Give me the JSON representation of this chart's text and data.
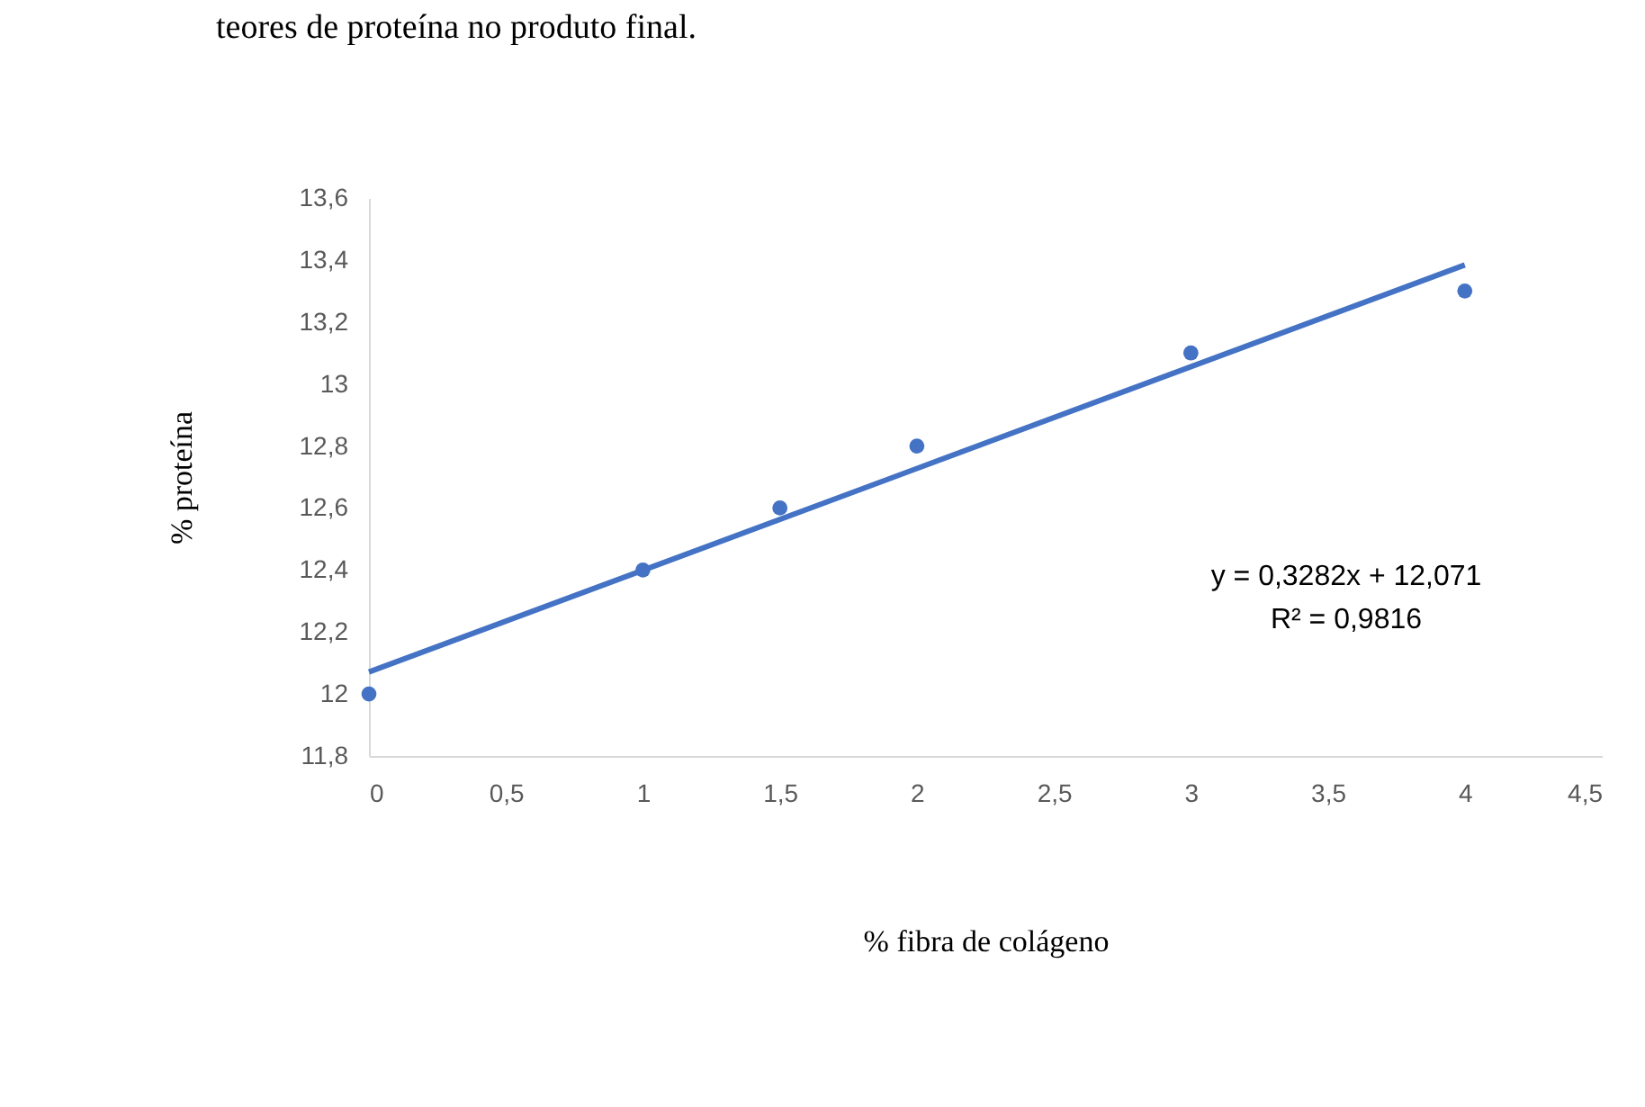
{
  "chart_data": {
    "type": "scatter",
    "title": "teores de proteína no produto final.",
    "xlabel": "% fibra de colágeno",
    "ylabel": "% proteína",
    "x": [
      0,
      1,
      1.5,
      2,
      3,
      4
    ],
    "series": [
      {
        "color": "#4472c4",
        "values": [
          12.0,
          12.4,
          12.6,
          12.8,
          13.1,
          13.3
        ]
      },
      {
        "type": "line",
        "marker": "none",
        "color": "#4472c4",
        "x": [
          0,
          4
        ],
        "values": [
          12.071,
          13.384
        ]
      }
    ],
    "marker": "circle",
    "xlim": [
      0,
      4.5
    ],
    "xticks": [
      0,
      {
        "value": 0.5,
        "label": "0,5"
      },
      1,
      {
        "value": 1.5,
        "label": "1,5"
      },
      2,
      {
        "value": 2.5,
        "label": "2,5"
      },
      3,
      {
        "value": 3.5,
        "label": "3,5"
      },
      4,
      {
        "value": 4.5,
        "label": "4,5"
      }
    ],
    "ylim": [
      11.8,
      13.6
    ],
    "yticks": [
      {
        "value": 11.8,
        "label": "11,8"
      },
      12,
      {
        "value": 12.2,
        "label": "12,2"
      },
      {
        "value": 12.4,
        "label": "12,4"
      },
      {
        "value": 12.6,
        "label": "12,6"
      },
      {
        "value": 12.8,
        "label": "12,8"
      },
      13,
      {
        "value": 13.2,
        "label": "13,2"
      },
      {
        "value": 13.4,
        "label": "13,4"
      },
      {
        "value": 13.6,
        "label": "13,6"
      }
    ],
    "annotations": [
      "y = 0,3282x + 12,071",
      "R² = 0,9816"
    ]
  }
}
